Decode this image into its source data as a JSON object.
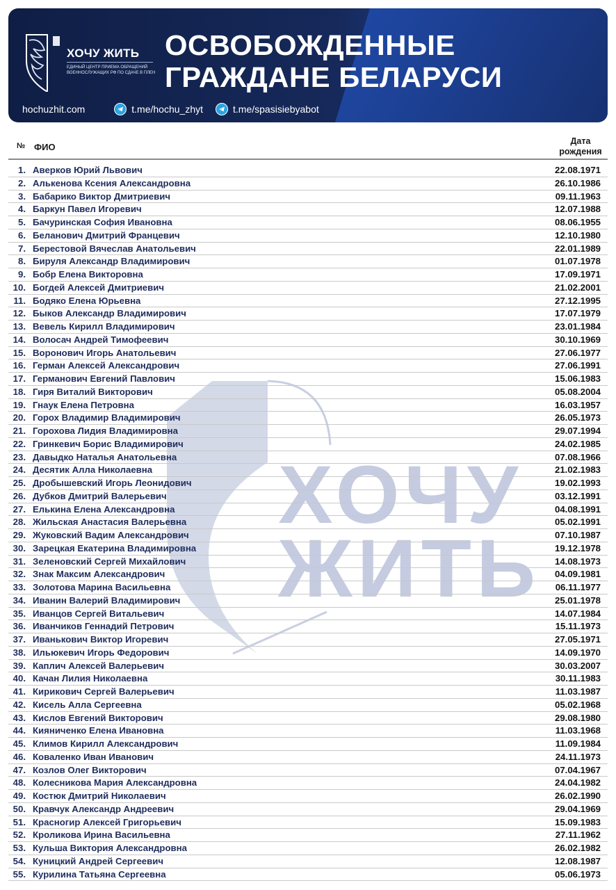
{
  "banner": {
    "brand": "ХОЧУ ЖИТЬ",
    "brand_subtitle": "ЕДИНЫЙ ЦЕНТР ПРИЕМА ОБРАЩЕНИЙ ВОЕННОСЛУЖАЩИХ РФ ПО СДАЧЕ В ПЛЕН",
    "title_line1": "ОСВОБОЖДЕННЫЕ",
    "title_line2": "ГРАЖДАНЕ БЕЛАРУСИ",
    "website": "hochuzhit.com",
    "telegram1": "t.me/hochu_zhyt",
    "telegram2": "t.me/spasisiebyabot",
    "icons": [
      "logo-shield-icon",
      "telegram-icon"
    ]
  },
  "watermark": {
    "line1": "ХОЧУ",
    "line2": "ЖИТЬ"
  },
  "table": {
    "headers": {
      "number": "№",
      "name": "ФИО",
      "dob": "Дата рождения"
    },
    "rows": [
      {
        "n": "1.",
        "name": "Аверков Юрий Львович",
        "dob": "22.08.1971"
      },
      {
        "n": "2.",
        "name": "Алькенова Ксения Александровна",
        "dob": "26.10.1986"
      },
      {
        "n": "3.",
        "name": "Бабарико Виктор Дмитриевич",
        "dob": "09.11.1963"
      },
      {
        "n": "4.",
        "name": "Баркун Павел Игоревич",
        "dob": "12.07.1988"
      },
      {
        "n": "5.",
        "name": "Бачуринская София Ивановна",
        "dob": "08.06.1955"
      },
      {
        "n": "6.",
        "name": "Беланович Дмитрий Францевич",
        "dob": "12.10.1980"
      },
      {
        "n": "7.",
        "name": "Берестовой Вячеслав Анатольевич",
        "dob": "22.01.1989"
      },
      {
        "n": "8.",
        "name": "Бируля Александр Владимирович",
        "dob": "01.07.1978"
      },
      {
        "n": "9.",
        "name": "Бобр Елена Викторовна",
        "dob": "17.09.1971"
      },
      {
        "n": "10.",
        "name": "Богдей Алексей Дмитриевич",
        "dob": "21.02.2001"
      },
      {
        "n": "11.",
        "name": "Бодяко Елена Юрьевна",
        "dob": "27.12.1995"
      },
      {
        "n": "12.",
        "name": "Быков Александр Владимирович",
        "dob": "17.07.1979"
      },
      {
        "n": "13.",
        "name": "Вевель Кирилл Владимирович",
        "dob": "23.01.1984"
      },
      {
        "n": "14.",
        "name": "Волосач Андрей Тимофеевич",
        "dob": "30.10.1969"
      },
      {
        "n": "15.",
        "name": "Воронович Игорь Анатольевич",
        "dob": "27.06.1977"
      },
      {
        "n": "16.",
        "name": "Герман Алексей Александрович",
        "dob": "27.06.1991"
      },
      {
        "n": "17.",
        "name": "Германович Евгений Павлович",
        "dob": "15.06.1983"
      },
      {
        "n": "18.",
        "name": "Гиря Виталий Викторович",
        "dob": "05.08.2004"
      },
      {
        "n": "19.",
        "name": "Гнаук Елена Петровна",
        "dob": "16.03.1957"
      },
      {
        "n": "20.",
        "name": "Горох Владимир Владимирович",
        "dob": "26.05.1973"
      },
      {
        "n": "21.",
        "name": "Горохова Лидия Владимировна",
        "dob": "29.07.1994"
      },
      {
        "n": "22.",
        "name": "Гринкевич Борис Владимирович",
        "dob": "24.02.1985"
      },
      {
        "n": "23.",
        "name": "Давыдко Наталья Анатольевна",
        "dob": "07.08.1966"
      },
      {
        "n": "24.",
        "name": "Десятик Алла Николаевна",
        "dob": "21.02.1983"
      },
      {
        "n": "25.",
        "name": "Дробышевский Игорь Леонидович",
        "dob": "19.02.1993"
      },
      {
        "n": "26.",
        "name": "Дубков Дмитрий Валерьевич",
        "dob": "03.12.1991"
      },
      {
        "n": "27.",
        "name": "Елькина Елена Александровна",
        "dob": "04.08.1991"
      },
      {
        "n": "28.",
        "name": "Жильская Анастасия Валерьевна",
        "dob": "05.02.1991"
      },
      {
        "n": "29.",
        "name": "Жуковский Вадим Александрович",
        "dob": "07.10.1987"
      },
      {
        "n": "30.",
        "name": "Зарецкая Екатерина Владимировна",
        "dob": "19.12.1978"
      },
      {
        "n": "31.",
        "name": "Зеленовский Сергей Михайлович",
        "dob": "14.08.1973"
      },
      {
        "n": "32.",
        "name": "Знак Максим Александрович",
        "dob": "04.09.1981"
      },
      {
        "n": "33.",
        "name": "Золотова Марина Васильевна",
        "dob": "06.11.1977"
      },
      {
        "n": "34.",
        "name": "Иванин Валерий Владимирович",
        "dob": "25.01.1978"
      },
      {
        "n": "35.",
        "name": "Иванцов Сергей Витальевич",
        "dob": "14.07.1984"
      },
      {
        "n": "36.",
        "name": "Иванчиков Геннадий Петрович",
        "dob": "15.11.1973"
      },
      {
        "n": "37.",
        "name": "Иванькович Виктор Игоревич",
        "dob": "27.05.1971"
      },
      {
        "n": "38.",
        "name": "Ильюкевич Игорь Федорович",
        "dob": "14.09.1970"
      },
      {
        "n": "39.",
        "name": "Каплич Алексей Валерьевич",
        "dob": "30.03.2007"
      },
      {
        "n": "40.",
        "name": "Качан Лилия Николаевна",
        "dob": "30.11.1983"
      },
      {
        "n": "41.",
        "name": "Кирикович Сергей Валерьевич",
        "dob": "11.03.1987"
      },
      {
        "n": "42.",
        "name": "Кисель Алла Сергеевна",
        "dob": "05.02.1968"
      },
      {
        "n": "43.",
        "name": "Кислов Евгений Викторович",
        "dob": "29.08.1980"
      },
      {
        "n": "44.",
        "name": "Кияниченко Елена Ивановна",
        "dob": "11.03.1968"
      },
      {
        "n": "45.",
        "name": "Климов Кирилл Александрович",
        "dob": "11.09.1984"
      },
      {
        "n": "46.",
        "name": "Коваленко Иван Иванович",
        "dob": "24.11.1973"
      },
      {
        "n": "47.",
        "name": "Козлов Олег Викторович",
        "dob": "07.04.1967"
      },
      {
        "n": "48.",
        "name": "Колесникова Мария Александровна",
        "dob": "24.04.1982"
      },
      {
        "n": "49.",
        "name": "Костюк Дмитрий Николаевич",
        "dob": "26.02.1990"
      },
      {
        "n": "50.",
        "name": "Кравчук Александр Андреевич",
        "dob": "29.04.1969"
      },
      {
        "n": "51.",
        "name": "Красногир Алексей Григорьевич",
        "dob": "15.09.1983"
      },
      {
        "n": "52.",
        "name": "Кроликова Ирина Васильевна",
        "dob": "27.11.1962"
      },
      {
        "n": "53.",
        "name": "Кульша Виктория Александровна",
        "dob": "26.02.1982"
      },
      {
        "n": "54.",
        "name": "Куницкий Андрей Сергеевич",
        "dob": "12.08.1987"
      },
      {
        "n": "55.",
        "name": "Курилина Татьяна Сергеевна",
        "dob": "05.06.1973"
      }
    ]
  }
}
